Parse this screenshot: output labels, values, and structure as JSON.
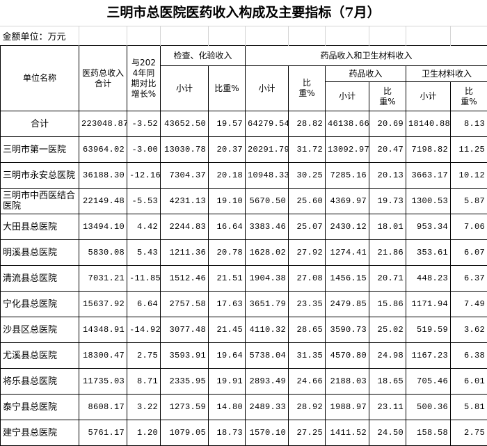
{
  "title": "三明市总医院医药收入构成及主要指标（7月）",
  "unit_label": "金额单位：万元",
  "headers": {
    "unit_name": "单位名称",
    "total_income": "医药总收入合计",
    "yoy_growth": "与2024年同期对比增长%",
    "exam_group": "检查、化验收入",
    "drug_material_group": "药品收入和卫生材料收入",
    "drug_group": "药品收入",
    "material_group": "卫生材料收入",
    "subtotal": "小计",
    "ratio": "比重%",
    "ratio_split": "比重%"
  },
  "rows": [
    [
      "合计",
      "223048.87",
      "-3.52",
      "43652.50",
      "19.57",
      "64279.54",
      "28.82",
      "46138.66",
      "20.69",
      "18140.88",
      "8.13"
    ],
    [
      "三明市第一医院",
      "63964.02",
      "-3.00",
      "13030.78",
      "20.37",
      "20291.79",
      "31.72",
      "13092.97",
      "20.47",
      "7198.82",
      "11.25"
    ],
    [
      "三明市永安总医院",
      "36188.30",
      "-12.16",
      "7304.37",
      "20.18",
      "10948.33",
      "30.25",
      "7285.16",
      "20.13",
      "3663.17",
      "10.12"
    ],
    [
      "三明市中西医结合医院",
      "22149.48",
      "-5.53",
      "4231.13",
      "19.10",
      "5670.50",
      "25.60",
      "4369.97",
      "19.73",
      "1300.53",
      "5.87"
    ],
    [
      "大田县总医院",
      "13494.10",
      "4.42",
      "2244.83",
      "16.64",
      "3383.46",
      "25.07",
      "2430.12",
      "18.01",
      "953.34",
      "7.06"
    ],
    [
      "明溪县总医院",
      "5830.08",
      "5.43",
      "1211.36",
      "20.78",
      "1628.02",
      "27.92",
      "1274.41",
      "21.86",
      "353.61",
      "6.07"
    ],
    [
      "清流县总医院",
      "7031.21",
      "-11.85",
      "1512.46",
      "21.51",
      "1904.38",
      "27.08",
      "1456.15",
      "20.71",
      "448.23",
      "6.37"
    ],
    [
      "宁化县总医院",
      "15637.92",
      "6.64",
      "2757.58",
      "17.63",
      "3651.79",
      "23.35",
      "2479.85",
      "15.86",
      "1171.94",
      "7.49"
    ],
    [
      "沙县区总医院",
      "14348.91",
      "-14.92",
      "3077.48",
      "21.45",
      "4110.32",
      "28.65",
      "3590.73",
      "25.02",
      "519.59",
      "3.62"
    ],
    [
      "尤溪县总医院",
      "18300.47",
      "2.75",
      "3593.91",
      "19.64",
      "5738.04",
      "31.35",
      "4570.80",
      "24.98",
      "1167.23",
      "6.38"
    ],
    [
      "将乐县总医院",
      "11735.03",
      "8.71",
      "2335.95",
      "19.91",
      "2893.49",
      "24.66",
      "2188.03",
      "18.65",
      "705.46",
      "6.01"
    ],
    [
      "泰宁县总医院",
      "8608.17",
      "3.22",
      "1273.59",
      "14.80",
      "2489.33",
      "28.92",
      "1988.97",
      "23.11",
      "500.36",
      "5.81"
    ],
    [
      "建宁县总医院",
      "5761.17",
      "1.20",
      "1079.05",
      "18.73",
      "1570.10",
      "27.25",
      "1411.52",
      "24.50",
      "158.58",
      "2.75"
    ]
  ]
}
